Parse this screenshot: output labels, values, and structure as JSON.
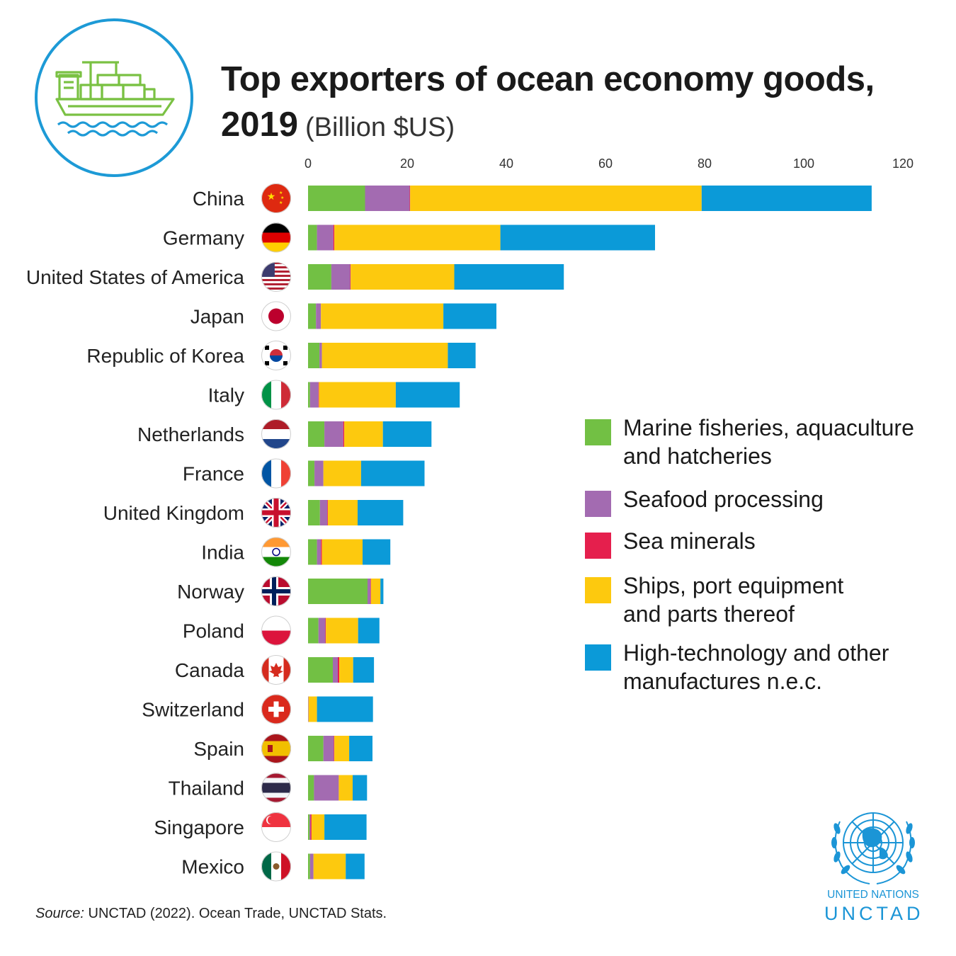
{
  "title": {
    "line1": "Top exporters of ocean economy goods,",
    "year": "2019",
    "unit": "(Billion $US)"
  },
  "colors": {
    "fisheries": "#72c044",
    "seafood": "#a36bb1",
    "minerals": "#e51f4d",
    "ships": "#fdc90e",
    "hitech": "#0b9ad8",
    "badge_ring": "#1d9ad6",
    "ship_icon": "#7ac143",
    "waves": "#1d9ad6",
    "un_blue": "#1b95d6"
  },
  "icons": {
    "badge": "cargo-ship-icon",
    "logo": "un-emblem-icon"
  },
  "legend": [
    {
      "key": "fisheries",
      "label": "Marine fisheries, aquaculture and hatcheries"
    },
    {
      "key": "seafood",
      "label": "Seafood processing"
    },
    {
      "key": "minerals",
      "label": "Sea minerals"
    },
    {
      "key": "ships",
      "label": "Ships, port equipment and parts thereof"
    },
    {
      "key": "hitech",
      "label": "High-technology and other manufactures n.e.c."
    }
  ],
  "chart_data": {
    "type": "bar",
    "orientation": "horizontal",
    "stacked": true,
    "title": "Top exporters of ocean economy goods, 2019 (Billion $US)",
    "xlim": [
      0,
      120
    ],
    "xticks": [
      0,
      20,
      40,
      60,
      80,
      100,
      120
    ],
    "xtick_labels": [
      "0",
      "20",
      "40",
      "60",
      "80",
      "100",
      "120"
    ],
    "categories": [
      "China",
      "Germany",
      "United States of America",
      "Japan",
      "Republic of Korea",
      "Italy",
      "Netherlands",
      "France",
      "United Kingdom",
      "India",
      "Norway",
      "Poland",
      "Canada",
      "Switzerland",
      "Spain",
      "Thailand",
      "Singapore",
      "Mexico"
    ],
    "flags": [
      "china-flag-icon",
      "germany-flag-icon",
      "usa-flag-icon",
      "japan-flag-icon",
      "korea-flag-icon",
      "italy-flag-icon",
      "netherlands-flag-icon",
      "france-flag-icon",
      "uk-flag-icon",
      "india-flag-icon",
      "norway-flag-icon",
      "poland-flag-icon",
      "canada-flag-icon",
      "switzerland-flag-icon",
      "spain-flag-icon",
      "thailand-flag-icon",
      "singapore-flag-icon",
      "mexico-flag-icon"
    ],
    "series": [
      {
        "key": "fisheries",
        "name": "Marine fisheries, aquaculture and hatcheries",
        "values": [
          11.5,
          1.8,
          4.7,
          1.6,
          2.3,
          0.4,
          3.3,
          1.3,
          2.4,
          1.8,
          12.0,
          2.1,
          5.0,
          0.0,
          3.1,
          1.2,
          0.3,
          0.4
        ]
      },
      {
        "key": "seafood",
        "name": "Seafood processing",
        "values": [
          9.0,
          3.3,
          3.8,
          1.0,
          0.5,
          1.7,
          3.8,
          1.8,
          1.5,
          0.8,
          0.6,
          1.4,
          1.0,
          0.1,
          2.1,
          5.0,
          0.2,
          0.7
        ]
      },
      {
        "key": "minerals",
        "name": "Sea minerals",
        "values": [
          0.1,
          0.2,
          0.1,
          0.0,
          0.0,
          0.1,
          0.2,
          0.0,
          0.1,
          0.2,
          0.1,
          0.1,
          0.3,
          0.0,
          0.1,
          0.0,
          0.2,
          0.0
        ]
      },
      {
        "key": "ships",
        "name": "Ships, port equipment and parts thereof",
        "values": [
          58.8,
          33.5,
          20.9,
          24.7,
          25.4,
          15.5,
          7.8,
          7.6,
          6.0,
          8.2,
          1.9,
          6.5,
          2.8,
          1.7,
          3.0,
          2.8,
          2.6,
          6.5
        ]
      },
      {
        "key": "hitech",
        "name": "High-technology and other manufactures n.e.c.",
        "values": [
          34.3,
          31.2,
          22.1,
          10.7,
          5.6,
          12.9,
          9.8,
          12.8,
          9.2,
          5.6,
          0.6,
          4.3,
          4.2,
          11.3,
          4.7,
          2.9,
          8.5,
          3.8
        ]
      }
    ]
  },
  "source": {
    "label": "Source:",
    "text": "UNCTAD (2022). Ocean Trade, UNCTAD Stats."
  },
  "logo": {
    "name": "UNITED NATIONS",
    "acronym": "UNCTAD"
  }
}
